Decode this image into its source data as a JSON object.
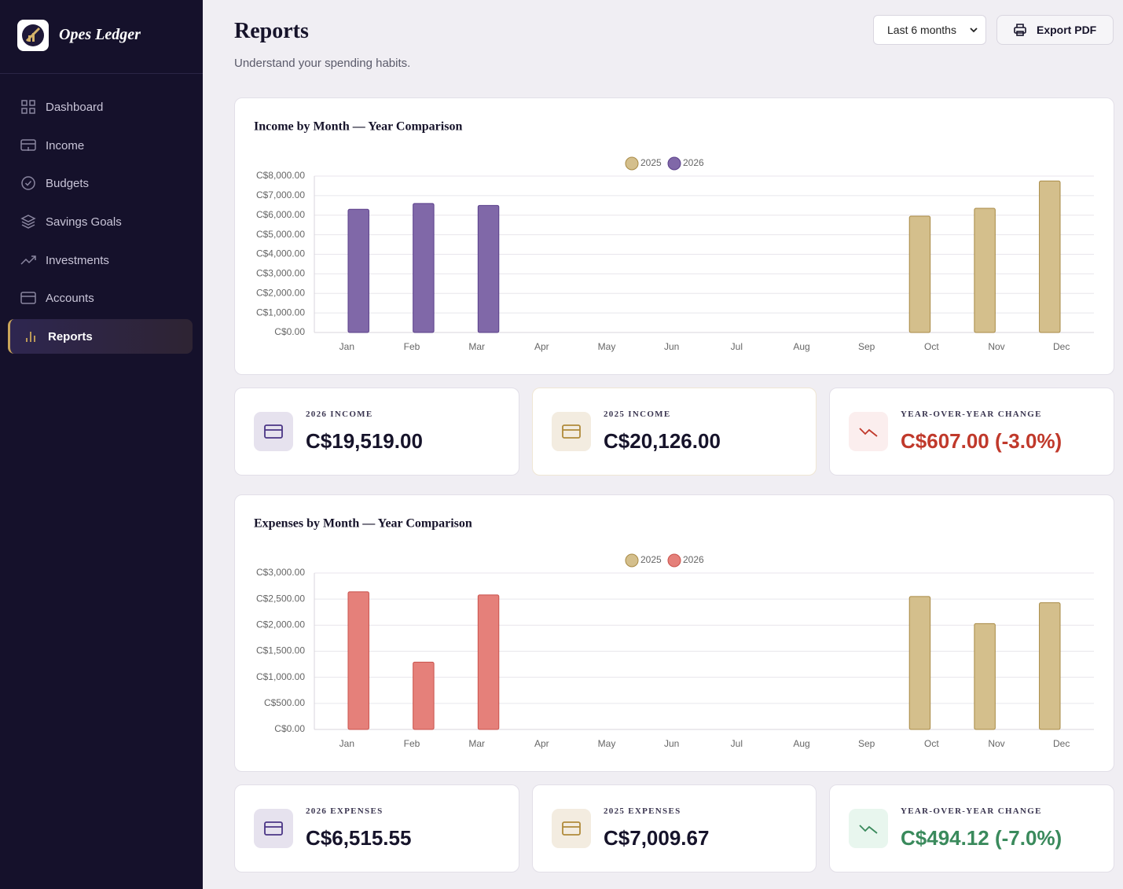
{
  "sidebar": {
    "brand": "Opes Ledger",
    "nav": [
      "Dashboard",
      "Income",
      "Budgets",
      "Savings Goals",
      "Investments",
      "Accounts",
      "Reports"
    ]
  },
  "header": {
    "title": "Reports",
    "subtitle": "Understand your spending habits.",
    "range": "Last 6 months",
    "export": "Export PDF"
  },
  "chart_data": [
    {
      "type": "bar",
      "title": "Income by Month — Year Comparison",
      "categories": [
        "Jan",
        "Feb",
        "Mar",
        "Apr",
        "May",
        "Jun",
        "Jul",
        "Aug",
        "Sep",
        "Oct",
        "Nov",
        "Dec"
      ],
      "series": [
        {
          "name": "2025",
          "color": "#d4bf8c",
          "values": [
            null,
            null,
            null,
            null,
            null,
            null,
            null,
            null,
            null,
            5950,
            6350,
            7750
          ]
        },
        {
          "name": "2026",
          "color": "#8068a8",
          "values": [
            6300,
            6600,
            6500,
            null,
            null,
            null,
            null,
            null,
            null,
            null,
            null,
            null
          ]
        }
      ],
      "ylim": [
        0,
        8000
      ],
      "yticks": [
        {
          "value": 0,
          "label": "C$0.00"
        },
        {
          "value": 1000,
          "label": "C$1,000.00"
        },
        {
          "value": 2000,
          "label": "C$2,000.00"
        },
        {
          "value": 3000,
          "label": "C$3,000.00"
        },
        {
          "value": 4000,
          "label": "C$4,000.00"
        },
        {
          "value": 5000,
          "label": "C$5,000.00"
        },
        {
          "value": 6000,
          "label": "C$6,000.00"
        },
        {
          "value": 7000,
          "label": "C$7,000.00"
        },
        {
          "value": 8000,
          "label": "C$8,000.00"
        }
      ],
      "grid": true,
      "legend": "top"
    },
    {
      "type": "bar",
      "title": "Expenses by Month — Year Comparison",
      "categories": [
        "Jan",
        "Feb",
        "Mar",
        "Apr",
        "May",
        "Jun",
        "Jul",
        "Aug",
        "Sep",
        "Oct",
        "Nov",
        "Dec"
      ],
      "series": [
        {
          "name": "2025",
          "color": "#d4bf8c",
          "values": [
            null,
            null,
            null,
            null,
            null,
            null,
            null,
            null,
            null,
            2550,
            2030,
            2430
          ]
        },
        {
          "name": "2026",
          "color": "#e5807a",
          "values": [
            2640,
            1290,
            2580,
            null,
            null,
            null,
            null,
            null,
            null,
            null,
            null,
            null
          ]
        }
      ],
      "ylim": [
        0,
        3000
      ],
      "yticks": [
        {
          "value": 0,
          "label": "C$0.00"
        },
        {
          "value": 500,
          "label": "C$500.00"
        },
        {
          "value": 1000,
          "label": "C$1,000.00"
        },
        {
          "value": 1500,
          "label": "C$1,500.00"
        },
        {
          "value": 2000,
          "label": "C$2,000.00"
        },
        {
          "value": 2500,
          "label": "C$2,500.00"
        },
        {
          "value": 3000,
          "label": "C$3,000.00"
        }
      ],
      "grid": true,
      "legend": "top"
    }
  ],
  "income_summary": [
    {
      "label": "2026 INCOME",
      "value": "C$19,519.00"
    },
    {
      "label": "2025 INCOME",
      "value": "C$20,126.00"
    },
    {
      "label": "YEAR-OVER-YEAR CHANGE",
      "value": "C$607.00 (-3.0%)"
    }
  ],
  "expense_summary": [
    {
      "label": "2026 EXPENSES",
      "value": "C$6,515.55"
    },
    {
      "label": "2025 EXPENSES",
      "value": "C$7,009.67"
    },
    {
      "label": "YEAR-OVER-YEAR CHANGE",
      "value": "C$494.12 (-7.0%)"
    }
  ]
}
